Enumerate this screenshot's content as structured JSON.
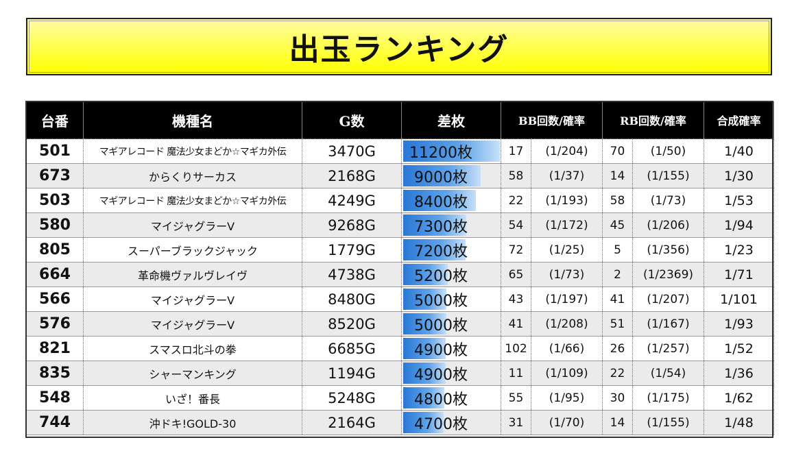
{
  "title": "出玉ランキング",
  "headers": {
    "machine_no": "台番",
    "machine_name": "機種名",
    "games": "G数",
    "diff": "差枚",
    "bb": "BB回数/確率",
    "rb": "RB回数/確率",
    "combined": "合成確率"
  },
  "colors": {
    "title_bg": "#ffff00",
    "header_bg": "#000000",
    "bar": "#2a78d6",
    "even_row": "#ebebeb"
  },
  "max_diff": 11200,
  "rows": [
    {
      "no": "501",
      "name": "マギアレコード 魔法少女まどか☆マギカ外伝",
      "games": "3470G",
      "diff": "11200枚",
      "diff_value": 11200,
      "bb": "17",
      "bb_rate": "(1/204)",
      "rb": "70",
      "rb_rate": "(1/50)",
      "combined": "1/40"
    },
    {
      "no": "673",
      "name": "からくりサーカス",
      "games": "2168G",
      "diff": "9000枚",
      "diff_value": 9000,
      "bb": "58",
      "bb_rate": "(1/37)",
      "rb": "14",
      "rb_rate": "(1/155)",
      "combined": "1/30"
    },
    {
      "no": "503",
      "name": "マギアレコード 魔法少女まどか☆マギカ外伝",
      "games": "4249G",
      "diff": "8400枚",
      "diff_value": 8400,
      "bb": "22",
      "bb_rate": "(1/193)",
      "rb": "58",
      "rb_rate": "(1/73)",
      "combined": "1/53"
    },
    {
      "no": "580",
      "name": "マイジャグラーV",
      "games": "9268G",
      "diff": "7300枚",
      "diff_value": 7300,
      "bb": "54",
      "bb_rate": "(1/172)",
      "rb": "45",
      "rb_rate": "(1/206)",
      "combined": "1/94"
    },
    {
      "no": "805",
      "name": "スーパーブラックジャック",
      "games": "1779G",
      "diff": "7200枚",
      "diff_value": 7200,
      "bb": "72",
      "bb_rate": "(1/25)",
      "rb": "5",
      "rb_rate": "(1/356)",
      "combined": "1/23"
    },
    {
      "no": "664",
      "name": "革命機ヴァルヴレイヴ",
      "games": "4738G",
      "diff": "5200枚",
      "diff_value": 5200,
      "bb": "65",
      "bb_rate": "(1/73)",
      "rb": "2",
      "rb_rate": "(1/2369)",
      "combined": "1/71"
    },
    {
      "no": "566",
      "name": "マイジャグラーV",
      "games": "8480G",
      "diff": "5000枚",
      "diff_value": 5000,
      "bb": "43",
      "bb_rate": "(1/197)",
      "rb": "41",
      "rb_rate": "(1/207)",
      "combined": "1/101"
    },
    {
      "no": "576",
      "name": "マイジャグラーV",
      "games": "8520G",
      "diff": "5000枚",
      "diff_value": 5000,
      "bb": "41",
      "bb_rate": "(1/208)",
      "rb": "51",
      "rb_rate": "(1/167)",
      "combined": "1/93"
    },
    {
      "no": "821",
      "name": "スマスロ北斗の拳",
      "games": "6685G",
      "diff": "4900枚",
      "diff_value": 4900,
      "bb": "102",
      "bb_rate": "(1/66)",
      "rb": "26",
      "rb_rate": "(1/257)",
      "combined": "1/52"
    },
    {
      "no": "835",
      "name": "シャーマンキング",
      "games": "1194G",
      "diff": "4900枚",
      "diff_value": 4900,
      "bb": "11",
      "bb_rate": "(1/109)",
      "rb": "22",
      "rb_rate": "(1/54)",
      "combined": "1/36"
    },
    {
      "no": "548",
      "name": "いざ！番長",
      "games": "5248G",
      "diff": "4800枚",
      "diff_value": 4800,
      "bb": "55",
      "bb_rate": "(1/95)",
      "rb": "30",
      "rb_rate": "(1/175)",
      "combined": "1/62"
    },
    {
      "no": "744",
      "name": "沖ドキ!GOLD-30",
      "games": "2164G",
      "diff": "4700枚",
      "diff_value": 4700,
      "bb": "31",
      "bb_rate": "(1/70)",
      "rb": "14",
      "rb_rate": "(1/155)",
      "combined": "1/48"
    }
  ]
}
